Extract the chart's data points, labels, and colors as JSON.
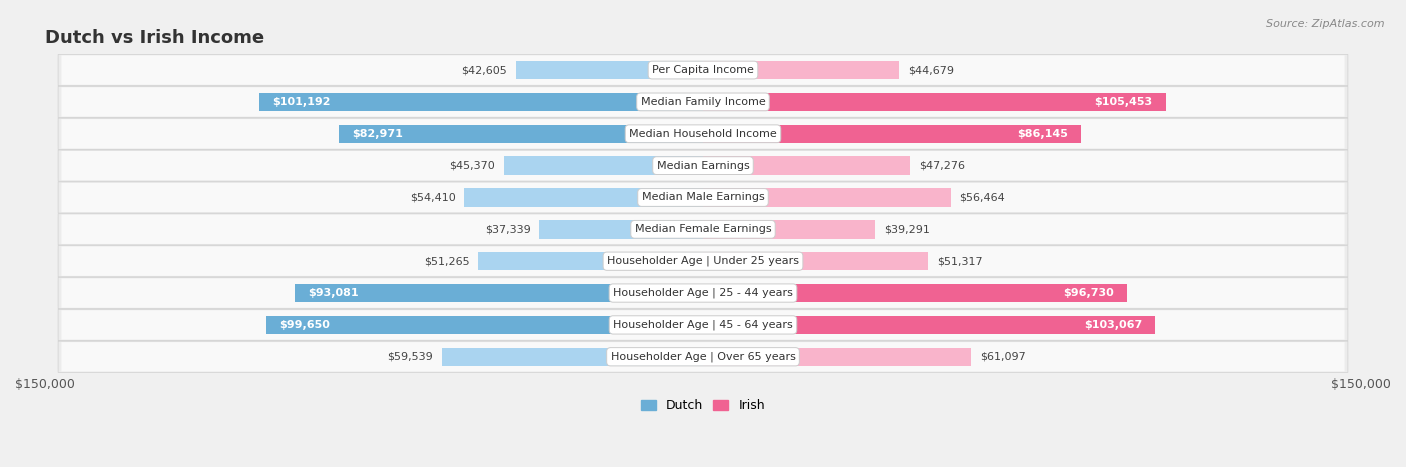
{
  "title": "Dutch vs Irish Income",
  "source": "Source: ZipAtlas.com",
  "categories": [
    "Per Capita Income",
    "Median Family Income",
    "Median Household Income",
    "Median Earnings",
    "Median Male Earnings",
    "Median Female Earnings",
    "Householder Age | Under 25 years",
    "Householder Age | 25 - 44 years",
    "Householder Age | 45 - 64 years",
    "Householder Age | Over 65 years"
  ],
  "dutch_values": [
    42605,
    101192,
    82971,
    45370,
    54410,
    37339,
    51265,
    93081,
    99650,
    59539
  ],
  "irish_values": [
    44679,
    105453,
    86145,
    47276,
    56464,
    39291,
    51317,
    96730,
    103067,
    61097
  ],
  "dutch_labels": [
    "$42,605",
    "$101,192",
    "$82,971",
    "$45,370",
    "$54,410",
    "$37,339",
    "$51,265",
    "$93,081",
    "$99,650",
    "$59,539"
  ],
  "irish_labels": [
    "$44,679",
    "$105,453",
    "$86,145",
    "$47,276",
    "$56,464",
    "$39,291",
    "$51,317",
    "$96,730",
    "$103,067",
    "$61,097"
  ],
  "dutch_color_dark": "#6aaed6",
  "dutch_color_light": "#aad4f0",
  "irish_color_dark": "#f06292",
  "irish_color_light": "#f9b4cb",
  "threshold": 70000,
  "max_value": 150000,
  "background_color": "#f0f0f0",
  "row_bg_color": "#e8e8e8",
  "row_fill_color": "#f8f8f8",
  "title_fontsize": 13,
  "label_fontsize": 8,
  "value_fontsize": 8,
  "axis_label": "$150,000"
}
